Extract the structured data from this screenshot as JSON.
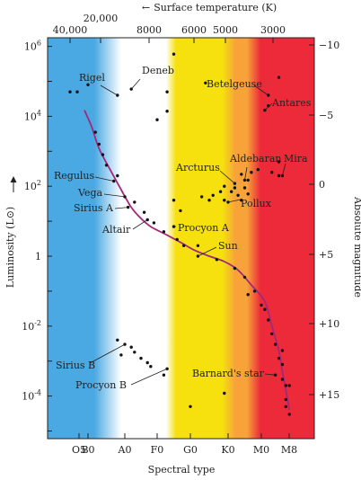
{
  "chart_data": {
    "type": "scatter",
    "xlabel": "Spectral type",
    "ylabel_left": "Luminosity (L⊙)",
    "ylabel_right": "Absolute magnitude",
    "top_axis_title": "Surface temperature (K)",
    "top_axis_arrow": "←",
    "spectral_ticks": [
      "O5",
      "B0",
      "A0",
      "F0",
      "G0",
      "K0",
      "M0",
      "M8"
    ],
    "temperature_ticks": [
      "40,000",
      "20,000",
      "8000",
      "6000",
      "5000",
      "3000"
    ],
    "luminosity_ticks": [
      {
        "base": "10",
        "exp": "6"
      },
      {
        "base": "10",
        "exp": "4"
      },
      {
        "base": "10",
        "exp": "2"
      },
      {
        "base": "1",
        "exp": ""
      },
      {
        "base": "10",
        "exp": "-2"
      },
      {
        "base": "10",
        "exp": "-4"
      }
    ],
    "magnitude_ticks": [
      "−10",
      "−5",
      "0",
      "+5",
      "+10",
      "+15"
    ],
    "ylim_luminosity": [
      1e-05,
      2000000.0
    ],
    "y_scale": "log",
    "main_sequence_color": "#a2287c",
    "band_colors": {
      "blue": "#4aa8e2",
      "white": "#ffffff",
      "yellow": "#f6e00e",
      "orange": "#f7a33a",
      "red": "#ec2a39"
    },
    "labeled_stars": [
      {
        "name": "Rigel",
        "type": "B8",
        "L": 40000
      },
      {
        "name": "Deneb",
        "type": "A2",
        "L": 60000
      },
      {
        "name": "Betelgeuse",
        "type": "M2",
        "L": 40000
      },
      {
        "name": "Antares",
        "type": "M1",
        "L": 15000
      },
      {
        "name": "Mira",
        "type": "M6",
        "L": 200
      },
      {
        "name": "Aldebaran",
        "type": "K5",
        "L": 150
      },
      {
        "name": "Arcturus",
        "type": "K2",
        "L": 120
      },
      {
        "name": "Pollux",
        "type": "K0",
        "L": 35
      },
      {
        "name": "Regulus",
        "type": "B7",
        "L": 140
      },
      {
        "name": "Vega",
        "type": "A0",
        "L": 50
      },
      {
        "name": "Sirius A",
        "type": "A1",
        "L": 25
      },
      {
        "name": "Altair",
        "type": "A7",
        "L": 11
      },
      {
        "name": "Procyon A",
        "type": "F5",
        "L": 7
      },
      {
        "name": "Sun",
        "type": "G2",
        "L": 1
      },
      {
        "name": "Sirius B",
        "type": "A0",
        "L": 0.003
      },
      {
        "name": "Procyon B",
        "type": "F3",
        "L": 0.0006
      },
      {
        "name": "Barnard's star",
        "type": "M4",
        "L": 0.0004
      }
    ],
    "main_sequence_curve": [
      {
        "type": "O7",
        "L": 15000
      },
      {
        "type": "B1",
        "L": 5000
      },
      {
        "type": "B3",
        "L": 1200
      },
      {
        "type": "B6",
        "L": 300
      },
      {
        "type": "B9",
        "L": 80
      },
      {
        "type": "A2",
        "L": 25
      },
      {
        "type": "A5",
        "L": 12
      },
      {
        "type": "A8",
        "L": 7
      },
      {
        "type": "F3",
        "L": 4
      },
      {
        "type": "F7",
        "L": 2.5
      },
      {
        "type": "G1",
        "L": 1.5
      },
      {
        "type": "G5",
        "L": 1
      },
      {
        "type": "G9",
        "L": 0.7
      },
      {
        "type": "K3",
        "L": 0.4
      },
      {
        "type": "K7",
        "L": 0.15
      },
      {
        "type": "M1",
        "L": 0.05
      },
      {
        "type": "M3",
        "L": 0.01
      },
      {
        "type": "M5",
        "L": 0.002
      },
      {
        "type": "M6",
        "L": 0.0005
      },
      {
        "type": "M7",
        "L": 0.00015
      },
      {
        "type": "M8",
        "L": 4e-05
      }
    ],
    "other_stars": [
      {
        "type": "O3",
        "L": 50000
      },
      {
        "type": "O5",
        "L": 50000
      },
      {
        "type": "B0",
        "L": 80000
      },
      {
        "type": "F5",
        "L": 600000
      },
      {
        "type": "F3",
        "L": 50000
      },
      {
        "type": "G4",
        "L": 90000
      },
      {
        "type": "F0",
        "L": 8000
      },
      {
        "type": "F3",
        "L": 14000
      },
      {
        "type": "M5",
        "L": 130000
      },
      {
        "type": "M2",
        "L": 20000
      },
      {
        "type": "M5",
        "L": 500
      },
      {
        "type": "K7",
        "L": 250
      },
      {
        "type": "K9",
        "L": 300
      },
      {
        "type": "M3",
        "L": 250
      },
      {
        "type": "M5",
        "L": 200
      },
      {
        "type": "K4",
        "L": 220
      },
      {
        "type": "K6",
        "L": 150
      },
      {
        "type": "K5",
        "L": 90
      },
      {
        "type": "G8",
        "L": 70
      },
      {
        "type": "G5",
        "L": 40
      },
      {
        "type": "G3",
        "L": 50
      },
      {
        "type": "G9",
        "L": 40
      },
      {
        "type": "K1",
        "L": 70
      },
      {
        "type": "K3",
        "L": 55
      },
      {
        "type": "K4",
        "L": 40
      },
      {
        "type": "K6",
        "L": 60
      },
      {
        "type": "G6",
        "L": 55
      },
      {
        "type": "G9",
        "L": 100
      },
      {
        "type": "F7",
        "L": 20
      },
      {
        "type": "F5",
        "L": 40
      },
      {
        "type": "K2",
        "L": 90
      },
      {
        "type": "B2",
        "L": 3500
      },
      {
        "type": "B3",
        "L": 1600
      },
      {
        "type": "B4",
        "L": 800
      },
      {
        "type": "B5",
        "L": 400
      },
      {
        "type": "B8",
        "L": 200
      },
      {
        "type": "A3",
        "L": 35
      },
      {
        "type": "A6",
        "L": 18
      },
      {
        "type": "A9",
        "L": 9
      },
      {
        "type": "F2",
        "L": 5
      },
      {
        "type": "F6",
        "L": 3
      },
      {
        "type": "F8",
        "L": 2
      },
      {
        "type": "G2",
        "L": 2
      },
      {
        "type": "G7",
        "L": 0.8
      },
      {
        "type": "K2",
        "L": 0.45
      },
      {
        "type": "K5",
        "L": 0.25
      },
      {
        "type": "K6",
        "L": 0.08
      },
      {
        "type": "K8",
        "L": 0.1
      },
      {
        "type": "M0",
        "L": 0.04
      },
      {
        "type": "M1",
        "L": 0.03
      },
      {
        "type": "M2",
        "L": 0.015
      },
      {
        "type": "M3",
        "L": 0.006
      },
      {
        "type": "M4",
        "L": 0.003
      },
      {
        "type": "M5",
        "L": 0.0012
      },
      {
        "type": "M6",
        "L": 0.0008
      },
      {
        "type": "M6",
        "L": 0.0003
      },
      {
        "type": "M7",
        "L": 0.0002
      },
      {
        "type": "M7",
        "L": 8e-05
      },
      {
        "type": "M8",
        "L": 3e-05
      },
      {
        "type": "M7",
        "L": 5e-05
      },
      {
        "type": "M6",
        "L": 0.002
      },
      {
        "type": "B8",
        "L": 0.004
      },
      {
        "type": "A2",
        "L": 0.0025
      },
      {
        "type": "A3",
        "L": 0.0018
      },
      {
        "type": "B9",
        "L": 0.0015
      },
      {
        "type": "A5",
        "L": 0.0012
      },
      {
        "type": "A7",
        "L": 0.0009
      },
      {
        "type": "A8",
        "L": 0.0007
      },
      {
        "type": "F2",
        "L": 0.0004
      },
      {
        "type": "G0",
        "L": 5e-05
      },
      {
        "type": "G9",
        "L": 0.00012
      },
      {
        "type": "M8",
        "L": 0.0002
      }
    ]
  }
}
